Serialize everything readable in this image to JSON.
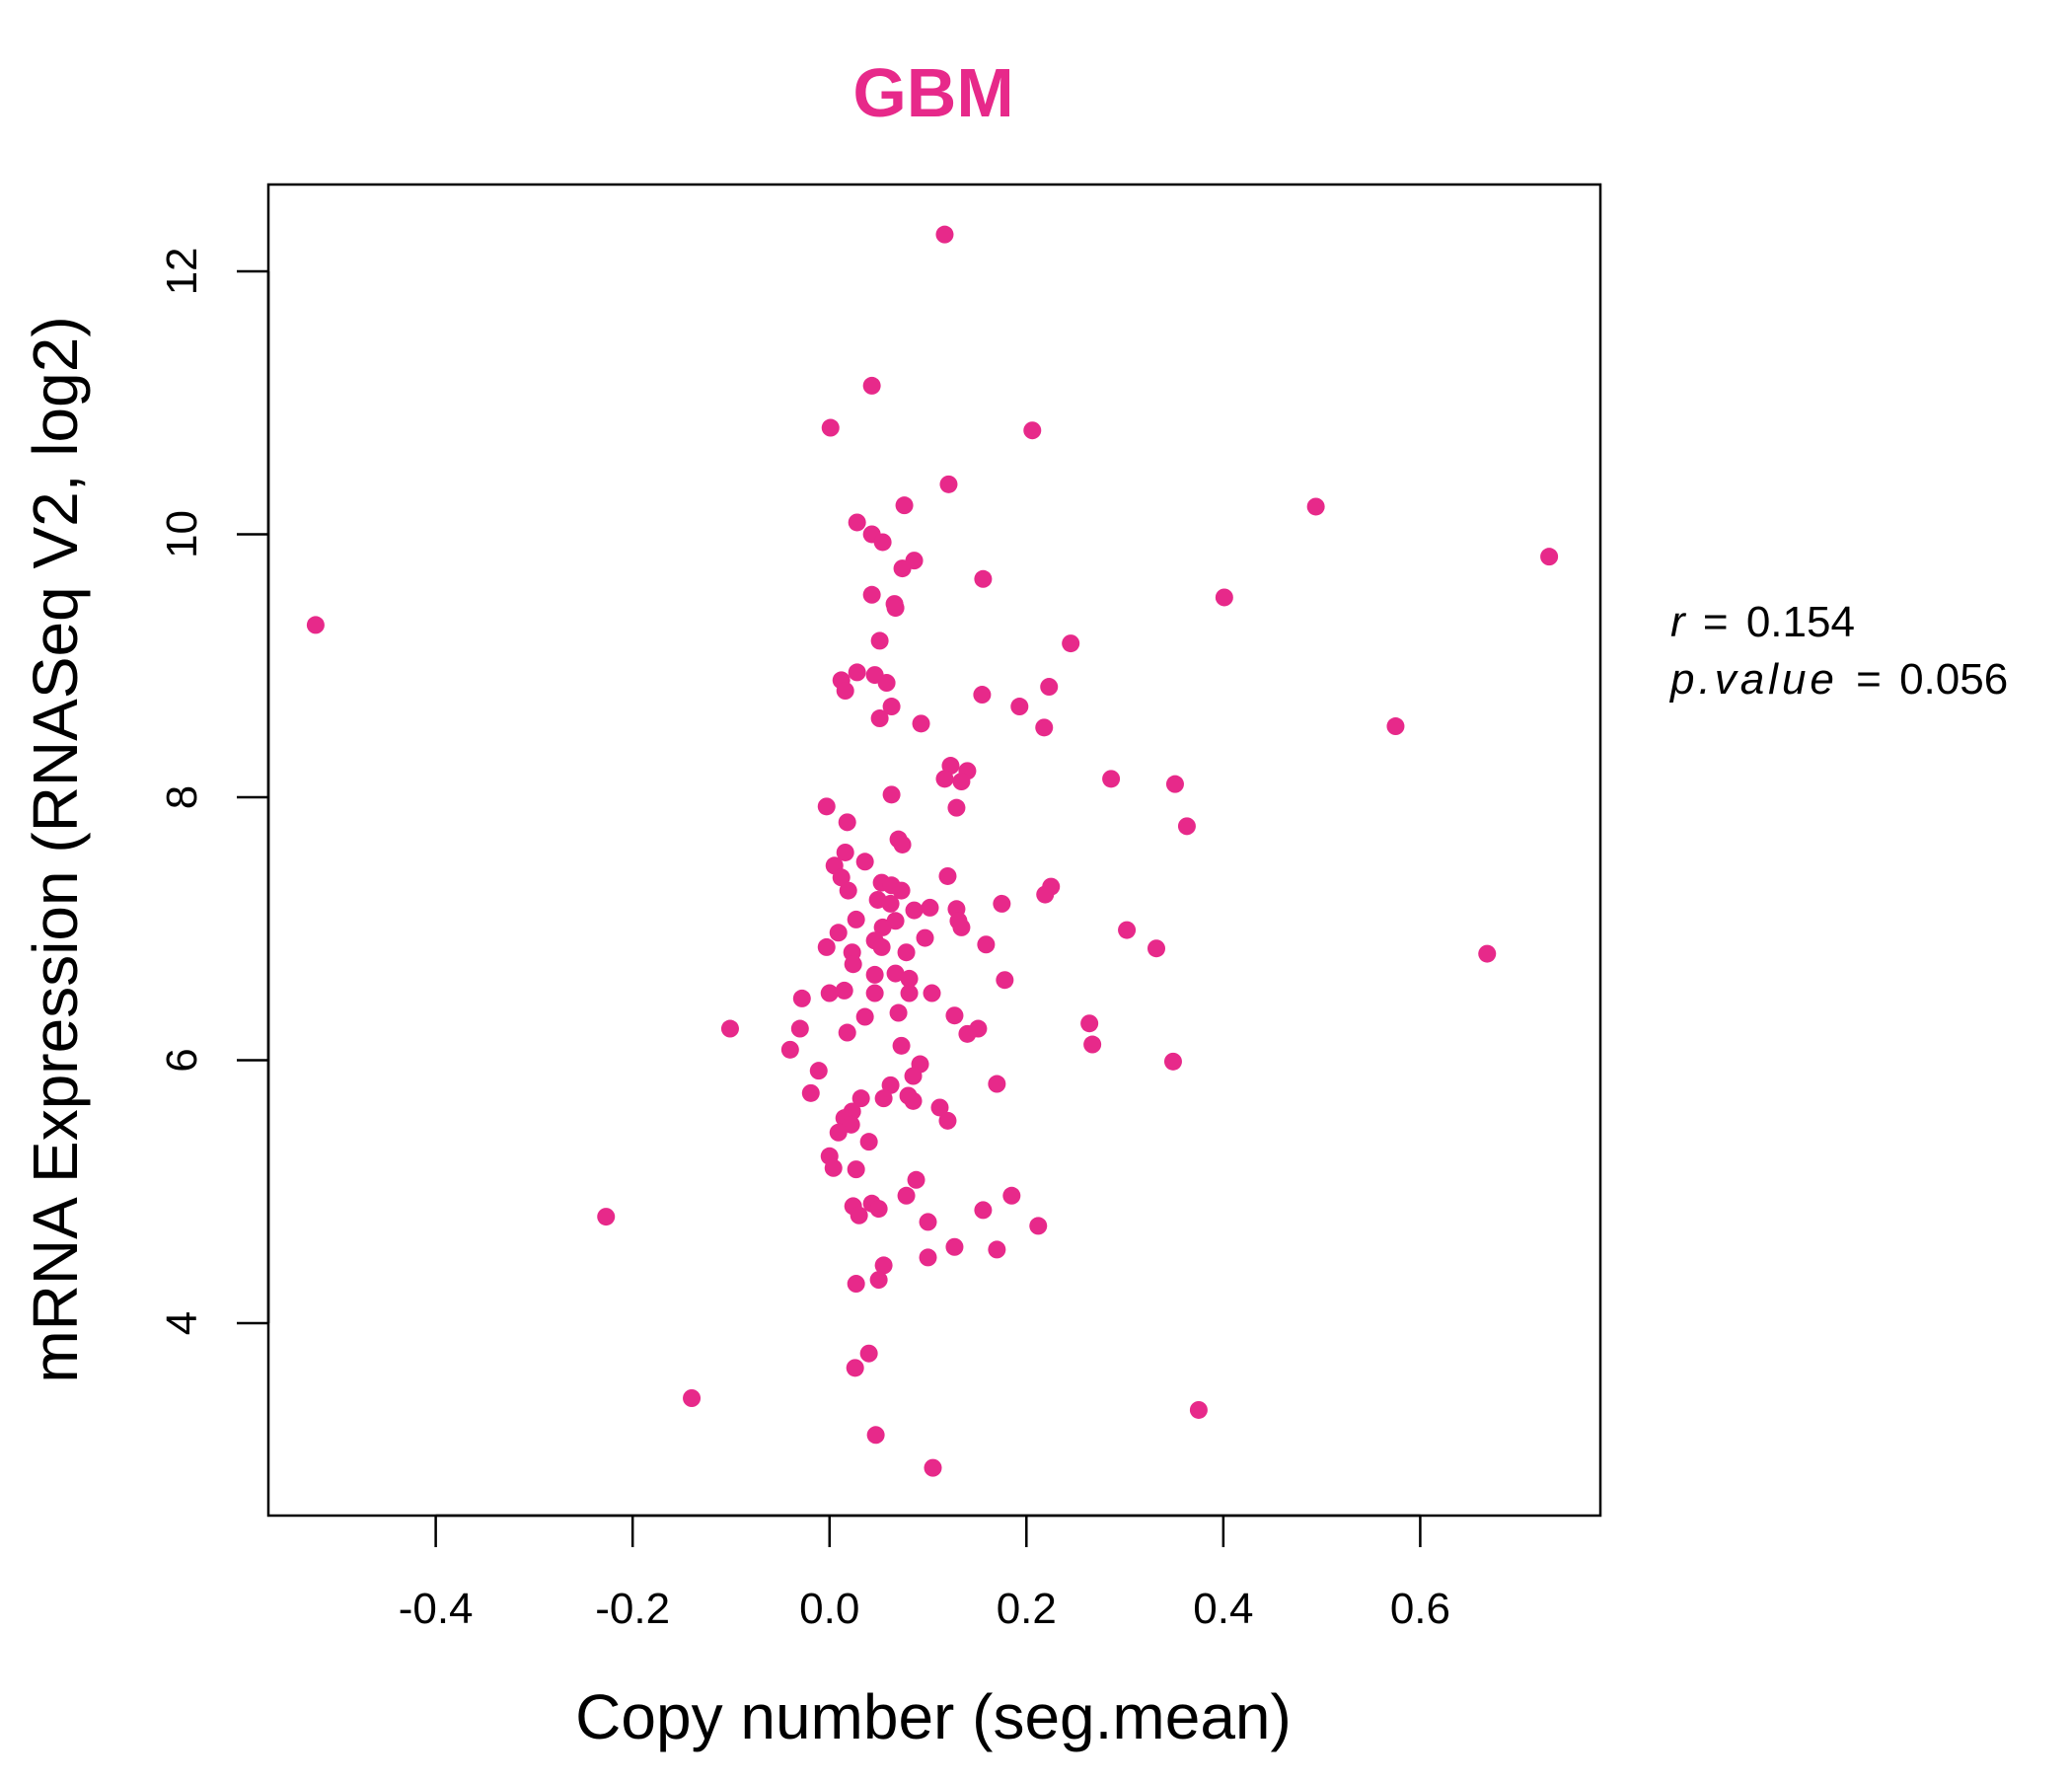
{
  "chart_data": {
    "type": "scatter",
    "title": "GBM",
    "xlabel": "Copy number (seg.mean)",
    "ylabel": "mRNA Expression (RNASeq V2, log2)",
    "xlim": [
      -0.57,
      0.783
    ],
    "ylim": [
      2.537,
      12.66
    ],
    "xticks": [
      "-0.4",
      "-0.2",
      "0.0",
      "0.2",
      "0.4",
      "0.6"
    ],
    "yticks": [
      "4",
      "6",
      "8",
      "10",
      "12"
    ],
    "grid": false,
    "color": "#E7298A",
    "annotation": {
      "r_label": "r",
      "r_value": "0.154",
      "p_label": "p.value",
      "p_value": "0.056",
      "equals": "="
    },
    "points": [
      [
        0.117,
        12.28
      ],
      [
        0.043,
        11.13
      ],
      [
        0.001,
        10.81
      ],
      [
        0.206,
        10.79
      ],
      [
        0.121,
        10.38
      ],
      [
        0.076,
        10.22
      ],
      [
        0.494,
        10.21
      ],
      [
        0.731,
        9.83
      ],
      [
        0.028,
        10.09
      ],
      [
        0.043,
        10.0
      ],
      [
        0.054,
        9.94
      ],
      [
        0.086,
        9.8
      ],
      [
        0.074,
        9.74
      ],
      [
        0.156,
        9.66
      ],
      [
        0.043,
        9.54
      ],
      [
        0.066,
        9.47
      ],
      [
        0.067,
        9.44
      ],
      [
        0.401,
        9.52
      ],
      [
        -0.522,
        9.31
      ],
      [
        0.051,
        9.19
      ],
      [
        0.245,
        9.17
      ],
      [
        0.028,
        8.95
      ],
      [
        0.012,
        8.89
      ],
      [
        0.046,
        8.93
      ],
      [
        0.058,
        8.87
      ],
      [
        0.016,
        8.81
      ],
      [
        0.223,
        8.84
      ],
      [
        0.155,
        8.78
      ],
      [
        0.063,
        8.69
      ],
      [
        0.193,
        8.69
      ],
      [
        0.051,
        8.6
      ],
      [
        0.093,
        8.56
      ],
      [
        0.218,
        8.53
      ],
      [
        0.575,
        8.54
      ],
      [
        0.123,
        8.24
      ],
      [
        0.14,
        8.2
      ],
      [
        0.117,
        8.14
      ],
      [
        0.134,
        8.12
      ],
      [
        0.286,
        8.14
      ],
      [
        0.351,
        8.1
      ],
      [
        0.063,
        8.02
      ],
      [
        0.129,
        7.92
      ],
      [
        -0.003,
        7.93
      ],
      [
        0.018,
        7.81
      ],
      [
        0.363,
        7.78
      ],
      [
        0.07,
        7.68
      ],
      [
        0.074,
        7.64
      ],
      [
        0.016,
        7.58
      ],
      [
        0.036,
        7.51
      ],
      [
        0.005,
        7.48
      ],
      [
        0.12,
        7.4
      ],
      [
        0.012,
        7.39
      ],
      [
        0.053,
        7.35
      ],
      [
        0.063,
        7.33
      ],
      [
        0.225,
        7.32
      ],
      [
        0.019,
        7.29
      ],
      [
        0.073,
        7.29
      ],
      [
        0.219,
        7.26
      ],
      [
        0.049,
        7.22
      ],
      [
        0.062,
        7.19
      ],
      [
        0.175,
        7.19
      ],
      [
        0.086,
        7.14
      ],
      [
        0.102,
        7.16
      ],
      [
        0.129,
        7.15
      ],
      [
        0.027,
        7.07
      ],
      [
        0.067,
        7.06
      ],
      [
        0.131,
        7.06
      ],
      [
        0.054,
        7.01
      ],
      [
        0.134,
        7.01
      ],
      [
        0.009,
        6.97
      ],
      [
        0.302,
        6.99
      ],
      [
        0.046,
        6.91
      ],
      [
        0.097,
        6.93
      ],
      [
        0.053,
        6.86
      ],
      [
        0.159,
        6.88
      ],
      [
        0.332,
        6.85
      ],
      [
        -0.003,
        6.86
      ],
      [
        0.078,
        6.82
      ],
      [
        0.023,
        6.82
      ],
      [
        0.668,
        6.81
      ],
      [
        0.024,
        6.73
      ],
      [
        0.067,
        6.66
      ],
      [
        0.046,
        6.65
      ],
      [
        0.081,
        6.62
      ],
      [
        0.178,
        6.61
      ],
      [
        0.015,
        6.53
      ],
      [
        0.0,
        6.51
      ],
      [
        0.046,
        6.51
      ],
      [
        0.081,
        6.51
      ],
      [
        0.104,
        6.51
      ],
      [
        -0.028,
        6.47
      ],
      [
        0.07,
        6.36
      ],
      [
        0.036,
        6.33
      ],
      [
        0.127,
        6.34
      ],
      [
        0.264,
        6.28
      ],
      [
        -0.101,
        6.24
      ],
      [
        -0.03,
        6.24
      ],
      [
        0.151,
        6.24
      ],
      [
        0.14,
        6.2
      ],
      [
        0.018,
        6.21
      ],
      [
        0.073,
        6.11
      ],
      [
        0.267,
        6.12
      ],
      [
        -0.04,
        6.08
      ],
      [
        0.349,
        5.99
      ],
      [
        0.092,
        5.97
      ],
      [
        -0.011,
        5.92
      ],
      [
        0.085,
        5.88
      ],
      [
        0.17,
        5.82
      ],
      [
        -0.019,
        5.75
      ],
      [
        0.062,
        5.81
      ],
      [
        0.08,
        5.73
      ],
      [
        0.055,
        5.71
      ],
      [
        0.032,
        5.71
      ],
      [
        0.085,
        5.69
      ],
      [
        0.112,
        5.64
      ],
      [
        0.023,
        5.61
      ],
      [
        0.12,
        5.54
      ],
      [
        0.015,
        5.56
      ],
      [
        0.022,
        5.51
      ],
      [
        0.009,
        5.45
      ],
      [
        0.04,
        5.38
      ],
      [
        0.0,
        5.27
      ],
      [
        0.004,
        5.18
      ],
      [
        0.027,
        5.17
      ],
      [
        0.088,
        5.09
      ],
      [
        0.185,
        4.97
      ],
      [
        0.078,
        4.97
      ],
      [
        0.024,
        4.89
      ],
      [
        0.043,
        4.91
      ],
      [
        0.05,
        4.87
      ],
      [
        0.156,
        4.86
      ],
      [
        0.03,
        4.82
      ],
      [
        -0.227,
        4.81
      ],
      [
        0.1,
        4.77
      ],
      [
        0.212,
        4.74
      ],
      [
        0.127,
        4.58
      ],
      [
        0.17,
        4.56
      ],
      [
        0.1,
        4.5
      ],
      [
        0.055,
        4.44
      ],
      [
        0.05,
        4.33
      ],
      [
        0.027,
        4.3
      ],
      [
        0.04,
        3.77
      ],
      [
        0.026,
        3.66
      ],
      [
        -0.14,
        3.43
      ],
      [
        0.375,
        3.34
      ],
      [
        0.047,
        3.15
      ],
      [
        0.105,
        2.9
      ]
    ]
  }
}
